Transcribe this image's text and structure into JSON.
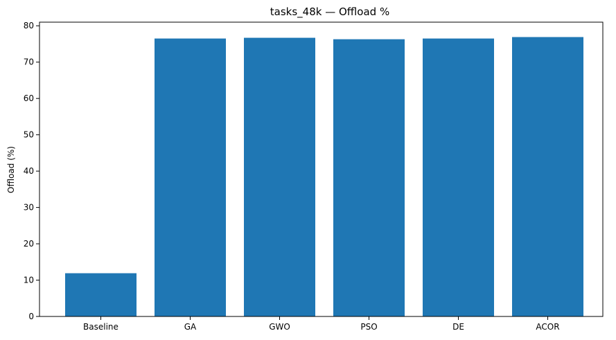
{
  "chart_data": {
    "type": "bar",
    "title": "tasks_48k — Offload %",
    "xlabel": "",
    "ylabel": "Offload (%)",
    "categories": [
      "Baseline",
      "GA",
      "GWO",
      "PSO",
      "DE",
      "ACOR"
    ],
    "values": [
      11.9,
      76.5,
      76.7,
      76.3,
      76.5,
      76.9
    ],
    "ylim": [
      0,
      81
    ],
    "yticks": [
      0,
      10,
      20,
      30,
      40,
      50,
      60,
      70,
      80
    ],
    "grid": false,
    "legend": "none",
    "bar_color": "#1f77b4"
  }
}
